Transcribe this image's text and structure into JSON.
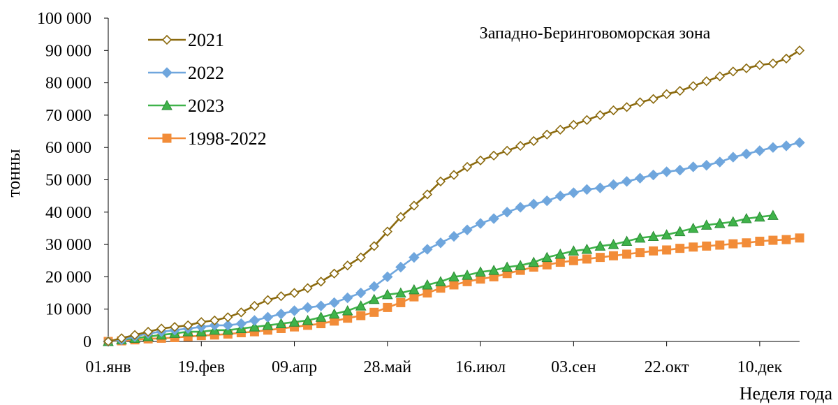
{
  "chart_data": {
    "type": "line",
    "title": "",
    "annotation": "Западно-Беринговоморская зона",
    "ylabel": "тонны",
    "xlabel": "Неделя года",
    "ylim": [
      0,
      100000
    ],
    "yticks": [
      0,
      10000,
      20000,
      30000,
      40000,
      50000,
      60000,
      70000,
      80000,
      90000,
      100000
    ],
    "ytick_labels": [
      "0",
      "10 000",
      "20 000",
      "30 000",
      "40 000",
      "50 000",
      "60 000",
      "70 000",
      "80 000",
      "90 000",
      "100 000"
    ],
    "x_unit": "week",
    "xlim": [
      1,
      53
    ],
    "xticks": [
      1,
      8,
      15,
      22,
      29,
      36,
      43,
      50
    ],
    "xtick_labels": [
      "01.янв",
      "19.фев",
      "09.апр",
      "28.май",
      "16.июл",
      "03.сен",
      "22.окт",
      "10.дек"
    ],
    "legend": "top-left",
    "grid": false,
    "series": [
      {
        "name": "2021",
        "color": "#8b6a0e",
        "marker": "diamond-open",
        "x": [
          1,
          2,
          3,
          4,
          5,
          6,
          7,
          8,
          9,
          10,
          11,
          12,
          13,
          14,
          15,
          16,
          17,
          18,
          19,
          20,
          21,
          22,
          23,
          24,
          25,
          26,
          27,
          28,
          29,
          30,
          31,
          32,
          33,
          34,
          35,
          36,
          37,
          38,
          39,
          40,
          41,
          42,
          43,
          44,
          45,
          46,
          47,
          48,
          49,
          50,
          51,
          52,
          53
        ],
        "values": [
          0,
          1000,
          2000,
          3000,
          4000,
          4500,
          5000,
          6000,
          6500,
          7500,
          9000,
          11000,
          12800,
          14000,
          15000,
          16500,
          18500,
          21000,
          23500,
          26000,
          29500,
          34000,
          38500,
          42000,
          45500,
          49500,
          51500,
          54000,
          56000,
          57500,
          59000,
          60500,
          62000,
          64000,
          65500,
          67000,
          68500,
          70000,
          71500,
          72500,
          74000,
          75000,
          76500,
          77500,
          79000,
          80500,
          82000,
          83500,
          84500,
          85500,
          86000,
          87500,
          90000
        ]
      },
      {
        "name": "2022",
        "color": "#6fa6dd",
        "marker": "diamond",
        "x": [
          1,
          2,
          3,
          4,
          5,
          6,
          7,
          8,
          9,
          10,
          11,
          12,
          13,
          14,
          15,
          16,
          17,
          18,
          19,
          20,
          21,
          22,
          23,
          24,
          25,
          26,
          27,
          28,
          29,
          30,
          31,
          32,
          33,
          34,
          35,
          36,
          37,
          38,
          39,
          40,
          41,
          42,
          43,
          44,
          45,
          46,
          47,
          48,
          49,
          50,
          51,
          52,
          53
        ],
        "values": [
          0,
          500,
          1500,
          2500,
          3000,
          3500,
          4000,
          4500,
          5000,
          5000,
          5500,
          6500,
          7500,
          8500,
          9500,
          10500,
          11000,
          12000,
          13500,
          15000,
          17000,
          20000,
          23000,
          26000,
          28500,
          30500,
          32500,
          34500,
          36500,
          38000,
          40000,
          41500,
          42500,
          43500,
          45000,
          46000,
          47000,
          47500,
          48500,
          49500,
          50500,
          51500,
          52500,
          53000,
          54000,
          54500,
          55500,
          57000,
          58000,
          59000,
          60000,
          60500,
          61500
        ]
      },
      {
        "name": "2023",
        "color": "#3fb34a",
        "marker": "triangle",
        "x": [
          1,
          2,
          3,
          4,
          5,
          6,
          7,
          8,
          9,
          10,
          11,
          12,
          13,
          14,
          15,
          16,
          17,
          18,
          19,
          20,
          21,
          22,
          23,
          24,
          25,
          26,
          27,
          28,
          29,
          30,
          31,
          32,
          33,
          34,
          35,
          36,
          37,
          38,
          39,
          40,
          41,
          42,
          43,
          44,
          45,
          46,
          47,
          48,
          49,
          50,
          51
        ],
        "values": [
          0,
          500,
          1000,
          1500,
          2000,
          2500,
          3000,
          3000,
          3500,
          3500,
          4000,
          4500,
          5000,
          5500,
          6000,
          6500,
          7500,
          8500,
          9500,
          11000,
          13000,
          14500,
          15000,
          16000,
          17500,
          18500,
          20000,
          20500,
          21500,
          22000,
          23000,
          23500,
          24500,
          26000,
          27000,
          28000,
          28500,
          29500,
          30000,
          31000,
          32000,
          32500,
          33000,
          34000,
          35000,
          36000,
          36500,
          37000,
          38000,
          38500,
          39000
        ]
      },
      {
        "name": "1998-2022",
        "color": "#f28c38",
        "marker": "square",
        "x": [
          1,
          2,
          3,
          4,
          5,
          6,
          7,
          8,
          9,
          10,
          11,
          12,
          13,
          14,
          15,
          16,
          17,
          18,
          19,
          20,
          21,
          22,
          23,
          24,
          25,
          26,
          27,
          28,
          29,
          30,
          31,
          32,
          33,
          34,
          35,
          36,
          37,
          38,
          39,
          40,
          41,
          42,
          43,
          44,
          45,
          46,
          47,
          48,
          49,
          50,
          51,
          52,
          53
        ],
        "values": [
          0,
          200,
          500,
          800,
          1000,
          1200,
          1500,
          1800,
          2000,
          2300,
          2700,
          3000,
          3500,
          4000,
          4500,
          5000,
          5500,
          6300,
          7200,
          8000,
          9000,
          10500,
          12000,
          13800,
          15000,
          16500,
          17500,
          18500,
          19300,
          20000,
          21000,
          22000,
          23000,
          23700,
          24500,
          25000,
          25500,
          26000,
          26500,
          27000,
          27500,
          28000,
          28300,
          28800,
          29200,
          29500,
          29800,
          30200,
          30500,
          31000,
          31300,
          31500,
          32000
        ]
      }
    ]
  }
}
